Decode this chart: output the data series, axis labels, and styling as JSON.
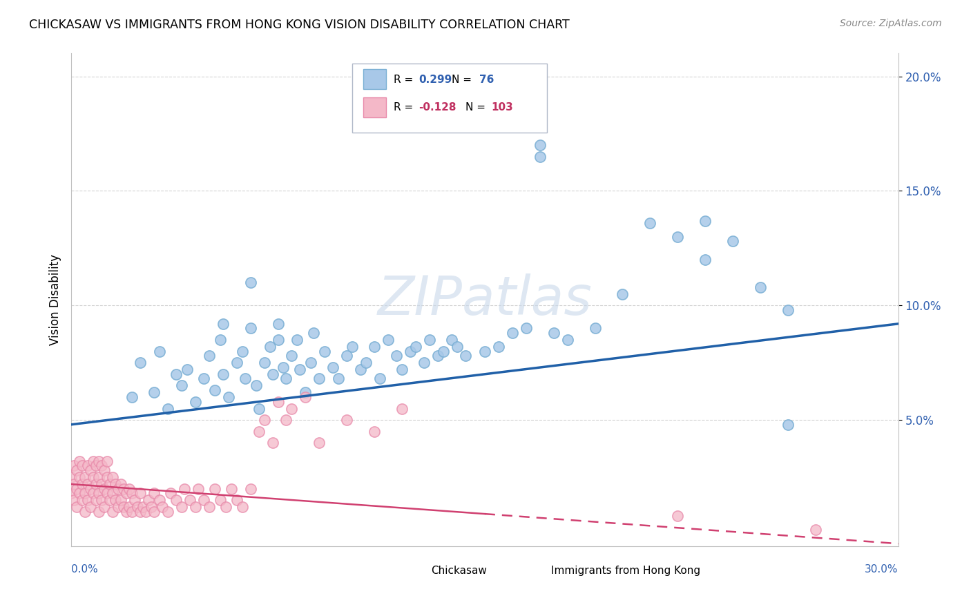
{
  "title": "CHICKASAW VS IMMIGRANTS FROM HONG KONG VISION DISABILITY CORRELATION CHART",
  "source": "Source: ZipAtlas.com",
  "ylabel": "Vision Disability",
  "xlim": [
    0.0,
    0.3
  ],
  "ylim": [
    -0.005,
    0.21
  ],
  "r_blue": 0.299,
  "n_blue": 76,
  "r_pink": -0.128,
  "n_pink": 103,
  "blue_color": "#a8c8e8",
  "blue_edge_color": "#7aafd4",
  "pink_color": "#f4b8c8",
  "pink_edge_color": "#e88aaa",
  "blue_line_color": "#2060a8",
  "pink_line_color": "#d04070",
  "watermark_color": "#c8d8ea",
  "legend_label_blue": "Chickasaw",
  "legend_label_pink": "Immigrants from Hong Kong",
  "blue_line_start_y": 0.048,
  "blue_line_end_y": 0.092,
  "pink_line_start_y": 0.022,
  "pink_line_end_y": -0.004,
  "ytick_vals": [
    0.05,
    0.1,
    0.15,
    0.2
  ],
  "ytick_labels": [
    "5.0%",
    "10.0%",
    "15.0%",
    "20.0%"
  ]
}
